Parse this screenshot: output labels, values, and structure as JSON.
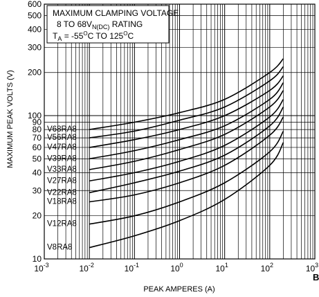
{
  "chart_data": {
    "type": "line",
    "xscale": "log",
    "yscale": "log",
    "xlim": [
      0.001,
      1000
    ],
    "ylim": [
      10,
      600
    ],
    "xlabel": "PEAK AMPERES (A)",
    "ylabel": "MAXIMUM PEAK VOLTS (V)",
    "x_tick_labels": [
      {
        "value": 0.001,
        "base": "10",
        "exp": "-3"
      },
      {
        "value": 0.01,
        "base": "10",
        "exp": "-2"
      },
      {
        "value": 0.1,
        "base": "10",
        "exp": "-1"
      },
      {
        "value": 1,
        "base": "10",
        "exp": "0"
      },
      {
        "value": 10,
        "base": "10",
        "exp": "1"
      },
      {
        "value": 100,
        "base": "10",
        "exp": "2"
      },
      {
        "value": 1000,
        "base": "10",
        "exp": "3"
      }
    ],
    "y_tick_labels": [
      {
        "value": 10,
        "label": "10"
      },
      {
        "value": 20,
        "label": "20"
      },
      {
        "value": 30,
        "label": "30"
      },
      {
        "value": 40,
        "label": "40"
      },
      {
        "value": 50,
        "label": "50"
      },
      {
        "value": 60,
        "label": "60"
      },
      {
        "value": 70,
        "label": "70"
      },
      {
        "value": 80,
        "label": "80"
      },
      {
        "value": 90,
        "label": "90"
      },
      {
        "value": 100,
        "label": "100"
      },
      {
        "value": 200,
        "label": "200"
      },
      {
        "value": 300,
        "label": "300"
      },
      {
        "value": 400,
        "label": "400"
      },
      {
        "value": 500,
        "label": "500"
      },
      {
        "value": 600,
        "label": "600"
      }
    ],
    "annotation": {
      "line1": "MAXIMUM CLAMPING VOLTAGE",
      "line2_pre": "8 TO 68V",
      "line2_sub": "N(DC)",
      "line2_post": " RATING",
      "line3_pre": "T",
      "line3_sub": "A",
      "line3_mid1": " = -55",
      "line3_sup1": "O",
      "line3_mid2": "C TO 125",
      "line3_sup2": "O",
      "line3_post": "C"
    },
    "figure_letter": "B",
    "grid": true,
    "legend": "inline labels at curve starts",
    "series": [
      {
        "name": "V68RA8",
        "x": [
          0.01,
          0.1,
          1,
          10,
          100,
          200
        ],
        "y": [
          80,
          90,
          105,
          130,
          200,
          250
        ]
      },
      {
        "name": "V56RA8",
        "x": [
          0.01,
          0.1,
          1,
          10,
          100,
          200
        ],
        "y": [
          70,
          78,
          93,
          115,
          175,
          220
        ]
      },
      {
        "name": "V47RA8",
        "x": [
          0.01,
          0.1,
          1,
          10,
          100,
          200
        ],
        "y": [
          60,
          68,
          80,
          100,
          150,
          190
        ]
      },
      {
        "name": "V39RA8",
        "x": [
          0.01,
          0.1,
          1,
          10,
          100,
          200
        ],
        "y": [
          50,
          57,
          68,
          85,
          130,
          170
        ]
      },
      {
        "name": "V33RA8",
        "x": [
          0.01,
          0.1,
          1,
          10,
          100,
          200
        ],
        "y": [
          42,
          48,
          58,
          74,
          115,
          150
        ]
      },
      {
        "name": "V27RA8",
        "x": [
          0.01,
          0.1,
          1,
          10,
          100,
          200
        ],
        "y": [
          35,
          40,
          48,
          62,
          98,
          130
        ]
      },
      {
        "name": "V22RA8",
        "x": [
          0.01,
          0.1,
          1,
          10,
          100,
          200
        ],
        "y": [
          29,
          34,
          41,
          53,
          85,
          115
        ]
      },
      {
        "name": "V18RA8",
        "x": [
          0.01,
          0.1,
          1,
          10,
          100,
          200
        ],
        "y": [
          25,
          28,
          34,
          45,
          73,
          98
        ]
      },
      {
        "name": "V12RA8",
        "x": [
          0.01,
          0.1,
          1,
          10,
          100,
          200
        ],
        "y": [
          17.5,
          20,
          25,
          34,
          56,
          78
        ]
      },
      {
        "name": "V8RA8",
        "x": [
          0.01,
          0.1,
          1,
          10,
          100,
          200
        ],
        "y": [
          12,
          14.5,
          18.5,
          26,
          45,
          65
        ]
      }
    ]
  }
}
